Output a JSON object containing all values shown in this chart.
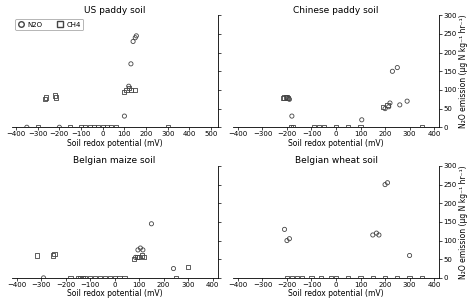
{
  "panels": [
    {
      "title": "US paddy soil",
      "xlim": [
        -420,
        530
      ],
      "xticks": [
        -400,
        -300,
        -200,
        -100,
        0,
        100,
        200,
        300,
        400,
        500
      ],
      "n2o_x": [
        -350,
        -200,
        100,
        120,
        130,
        140,
        150,
        155
      ],
      "n2o_y": [
        0,
        0,
        30,
        110,
        170,
        230,
        240,
        245
      ],
      "ch4_x": [
        -300,
        -265,
        -260,
        -220,
        -215,
        -150,
        -100,
        -80,
        -60,
        -40,
        -20,
        0,
        20,
        40,
        60,
        100,
        110,
        120,
        130,
        150,
        300
      ],
      "ch4_y": [
        0,
        75,
        80,
        85,
        80,
        0,
        0,
        0,
        0,
        0,
        0,
        0,
        0,
        0,
        0,
        95,
        100,
        105,
        100,
        100,
        0
      ],
      "show_legend": true
    },
    {
      "title": "Chinese paddy soil",
      "xlim": [
        -420,
        420
      ],
      "xticks": [
        -400,
        -300,
        -200,
        -100,
        0,
        100,
        200,
        300,
        400
      ],
      "n2o_x": [
        -190,
        -180,
        105,
        200,
        215,
        220,
        230,
        250,
        260,
        290
      ],
      "n2o_y": [
        75,
        30,
        20,
        50,
        55,
        65,
        150,
        160,
        60,
        70
      ],
      "ch4_x": [
        -215,
        -210,
        -205,
        -200,
        -195,
        -185,
        -175,
        -90,
        -70,
        -50,
        0,
        50,
        100,
        190,
        210,
        350
      ],
      "ch4_y": [
        78,
        80,
        82,
        80,
        78,
        0,
        0,
        0,
        0,
        0,
        0,
        0,
        0,
        55,
        60,
        0
      ],
      "show_legend": false
    },
    {
      "title": "Belgian maize soil",
      "xlim": [
        -420,
        420
      ],
      "xticks": [
        -400,
        -300,
        -200,
        -100,
        0,
        100,
        200,
        300,
        400
      ],
      "n2o_x": [
        -290,
        85,
        95,
        105,
        115,
        150,
        240
      ],
      "n2o_y": [
        0,
        55,
        75,
        80,
        75,
        145,
        25
      ],
      "ch4_x": [
        -315,
        -250,
        -245,
        -180,
        -150,
        -140,
        -130,
        -120,
        -100,
        -80,
        -60,
        -40,
        -20,
        0,
        20,
        40,
        80,
        90,
        100,
        110,
        120,
        250,
        300
      ],
      "ch4_y": [
        60,
        60,
        65,
        0,
        0,
        0,
        0,
        0,
        0,
        0,
        0,
        0,
        0,
        0,
        0,
        0,
        50,
        55,
        55,
        60,
        55,
        0,
        30
      ],
      "show_legend": false
    },
    {
      "title": "Belgian wheat soil",
      "xlim": [
        -420,
        420
      ],
      "xticks": [
        -400,
        -300,
        -200,
        -100,
        0,
        100,
        200,
        300,
        400
      ],
      "n2o_x": [
        -210,
        -200,
        -190,
        150,
        165,
        175,
        200,
        210,
        300
      ],
      "n2o_y": [
        130,
        100,
        105,
        115,
        120,
        115,
        250,
        255,
        60
      ],
      "ch4_x": [
        -200,
        -180,
        -160,
        -140,
        -100,
        -60,
        -20,
        0,
        50,
        100,
        150,
        200,
        250,
        300,
        350
      ],
      "ch4_y": [
        0,
        0,
        0,
        0,
        0,
        0,
        0,
        0,
        0,
        0,
        0,
        0,
        0,
        0,
        0
      ],
      "show_legend": false
    }
  ],
  "ylabel_right": "N₂O emission (µg N kg⁻¹ hr⁻¹)",
  "xlabel": "Soil redox potential (mV)",
  "ylim": [
    0,
    300
  ],
  "yticks": [
    0,
    50,
    100,
    150,
    200,
    250,
    300
  ],
  "background_color": "#ffffff",
  "circle_color": "none",
  "circle_edge": "#444444",
  "square_color": "none",
  "square_edge": "#444444",
  "fontsize_title": 6.5,
  "fontsize_label": 5.5,
  "fontsize_tick": 5.0
}
